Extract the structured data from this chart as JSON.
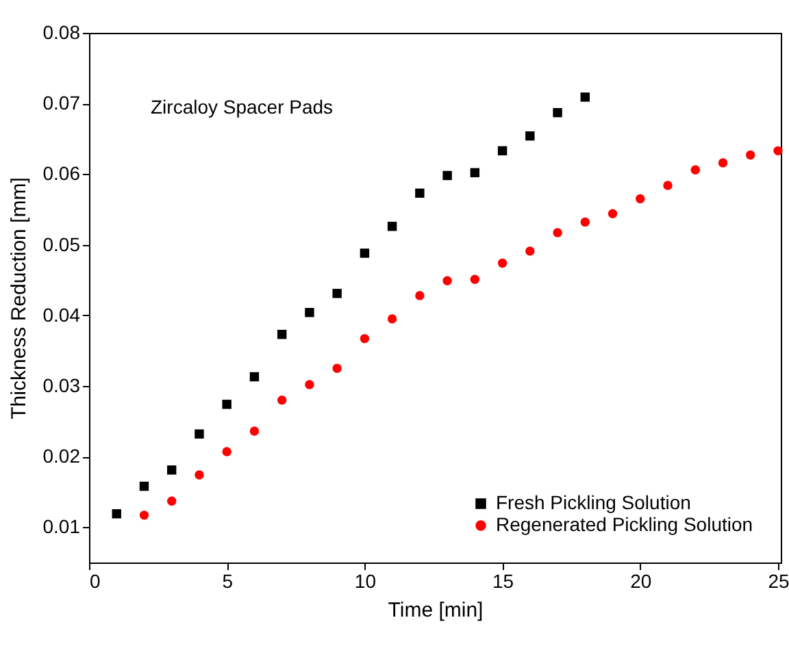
{
  "chart_data": {
    "type": "scatter",
    "xlabel": "Time [min]",
    "ylabel": "Thickness Reduction [mm]",
    "annotations": [
      "Zircaloy Spacer Pads"
    ],
    "xlim": [
      0,
      25.1
    ],
    "xticks": [
      0,
      5,
      10,
      15,
      20,
      25
    ],
    "ylim": [
      0.005,
      0.08
    ],
    "yticks": [
      0.01,
      0.02,
      0.03,
      0.04,
      0.05,
      0.06,
      0.07,
      0.08
    ],
    "legend": "bottom right",
    "grid": false,
    "series": [
      {
        "name": "Fresh Pickling Solution",
        "color": "#000000",
        "marker": "square",
        "x": [
          1,
          2,
          3,
          4,
          5,
          6,
          7,
          8,
          9,
          10,
          11,
          12,
          13,
          14,
          15,
          16,
          17,
          18
        ],
        "values": [
          0.0119,
          0.0158,
          0.0181,
          0.0232,
          0.0274,
          0.0313,
          0.0373,
          0.0404,
          0.0431,
          0.0488,
          0.0526,
          0.0573,
          0.0598,
          0.0602,
          0.0633,
          0.0654,
          0.0687,
          0.0709
        ]
      },
      {
        "name": "Regenerated Pickling Solution",
        "color": "#ff0000",
        "marker": "circle",
        "x": [
          2,
          3,
          4,
          5,
          6,
          7,
          8,
          9,
          10,
          11,
          12,
          13,
          14,
          15,
          16,
          17,
          18,
          19,
          20,
          21,
          22,
          23,
          24,
          25
        ],
        "values": [
          0.0117,
          0.0137,
          0.0174,
          0.0207,
          0.0236,
          0.028,
          0.0302,
          0.0325,
          0.0367,
          0.0395,
          0.0428,
          0.0449,
          0.0451,
          0.0474,
          0.0491,
          0.0517,
          0.0532,
          0.0544,
          0.0565,
          0.0584,
          0.0606,
          0.0616,
          0.0627,
          0.0633
        ]
      }
    ]
  }
}
